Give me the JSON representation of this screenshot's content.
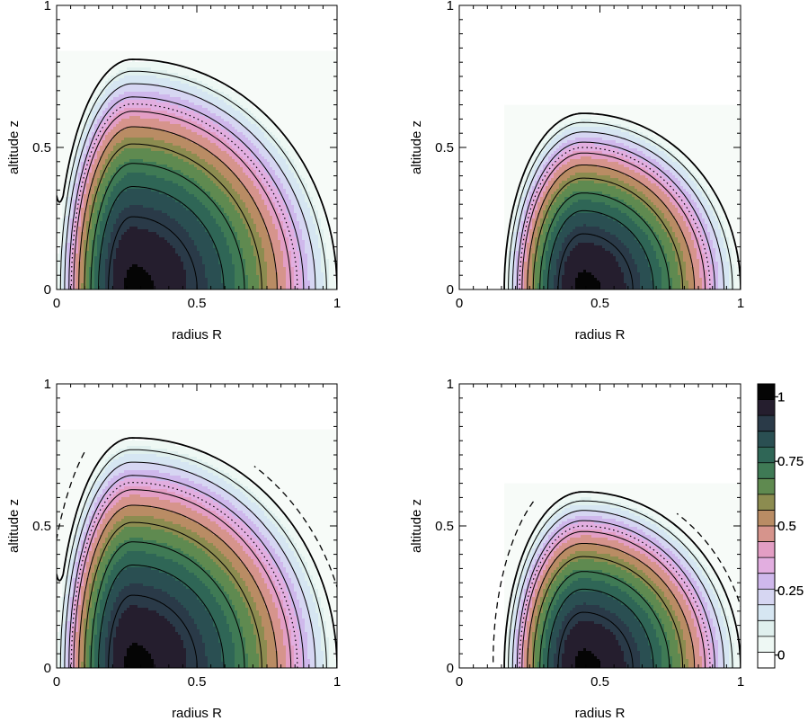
{
  "chart_data": {
    "type": "heatmap",
    "panels": [
      {
        "id": "top-left",
        "xlabel": "radius R",
        "ylabel": "altitude z",
        "xlim": [
          0,
          1
        ],
        "ylim": [
          0,
          1
        ],
        "xticks": [
          "0",
          "0.5",
          "1"
        ],
        "yticks": [
          "0",
          "0.5",
          "1"
        ],
        "center_r": 0.27,
        "outer_radius": 1.0,
        "inner_radius": 0.0,
        "max_height": 0.81,
        "axis_value": 0.33,
        "has_colorbar": false,
        "has_dashed": false
      },
      {
        "id": "top-right",
        "xlabel": "radius R",
        "ylabel": "altitude z",
        "xlim": [
          0,
          1
        ],
        "ylim": [
          0,
          1
        ],
        "xticks": [
          "0",
          "0.5",
          "1"
        ],
        "yticks": [
          "0",
          "0.5",
          "1"
        ],
        "center_r": 0.44,
        "outer_radius": 1.0,
        "inner_radius": 0.16,
        "max_height": 0.62,
        "axis_value": 0.0,
        "has_colorbar": false,
        "has_dashed": false
      },
      {
        "id": "bottom-left",
        "xlabel": "radius R",
        "ylabel": "altitude z",
        "xlim": [
          0,
          1
        ],
        "ylim": [
          0,
          1
        ],
        "xticks": [
          "0",
          "0.5",
          "1"
        ],
        "yticks": [
          "0",
          "0.5",
          "1"
        ],
        "center_r": 0.27,
        "outer_radius": 1.0,
        "inner_radius": 0.0,
        "max_height": 0.81,
        "axis_value": 0.33,
        "has_colorbar": true,
        "has_dashed": true
      },
      {
        "id": "bottom-right",
        "xlabel": "radius R",
        "ylabel": "altitude z",
        "xlim": [
          0,
          1
        ],
        "ylim": [
          0,
          1
        ],
        "xticks": [
          "0",
          "0.5",
          "1"
        ],
        "yticks": [
          "0",
          "0.5",
          "1"
        ],
        "center_r": 0.44,
        "outer_radius": 1.0,
        "inner_radius": 0.16,
        "max_height": 0.62,
        "axis_value": 0.0,
        "has_colorbar": true,
        "has_dashed": true
      }
    ],
    "contour_levels": [
      0.0,
      0.1,
      0.2,
      0.3,
      0.4,
      0.5,
      0.6,
      0.7,
      0.8,
      0.9
    ],
    "dotted_level": 0.35,
    "colorbar": {
      "min": -0.05,
      "max": 1.05,
      "ticks": [
        {
          "value": 0,
          "label": "0"
        },
        {
          "value": 0.25,
          "label": "0.25"
        },
        {
          "value": 0.5,
          "label": "0.5"
        },
        {
          "value": 0.75,
          "label": "0.75"
        },
        {
          "value": 1,
          "label": "1"
        }
      ],
      "colors": [
        "#ffffff",
        "#eef8f4",
        "#e0f0ee",
        "#d6e6f2",
        "#d6d6f2",
        "#cfb8ec",
        "#e2aee0",
        "#e39ec4",
        "#d6948c",
        "#b98c64",
        "#8c8c50",
        "#5f8a50",
        "#3f7a55",
        "#2f6656",
        "#2a4f52",
        "#2a3a48",
        "#251e2e",
        "#050505"
      ]
    }
  }
}
